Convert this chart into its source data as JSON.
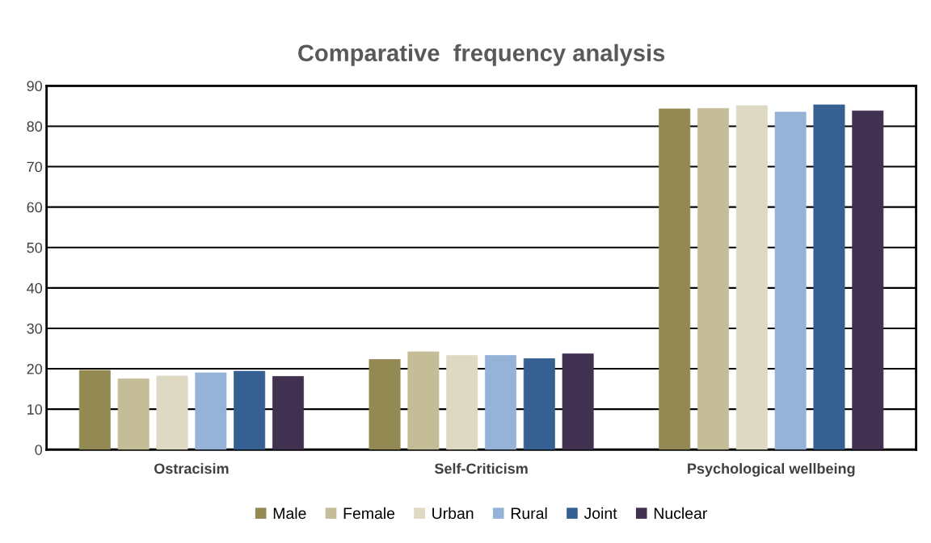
{
  "chart_data": {
    "type": "bar",
    "title": "Comparative  frequency analysis",
    "categories": [
      "Ostracisim",
      "Self-Criticism",
      "Psychological wellbeing"
    ],
    "series": [
      {
        "name": "Male",
        "color": "#938953",
        "values": [
          19.6,
          22.3,
          84.3
        ]
      },
      {
        "name": "Female",
        "color": "#c4bd97",
        "values": [
          17.5,
          24.2,
          84.4
        ]
      },
      {
        "name": "Urban",
        "color": "#ddd9c3",
        "values": [
          18.2,
          23.3,
          85.1
        ]
      },
      {
        "name": "Rural",
        "color": "#95b3d7",
        "values": [
          19.0,
          23.3,
          83.5
        ]
      },
      {
        "name": "Joint",
        "color": "#366092",
        "values": [
          19.4,
          22.5,
          85.3
        ]
      },
      {
        "name": "Nuclear",
        "color": "#403151",
        "values": [
          18.1,
          23.7,
          83.8
        ]
      }
    ],
    "ylim": [
      0,
      90
    ],
    "yticks": [
      0,
      10,
      20,
      30,
      40,
      50,
      60,
      70,
      80,
      90
    ],
    "grid": "y",
    "legend": "bottom"
  }
}
